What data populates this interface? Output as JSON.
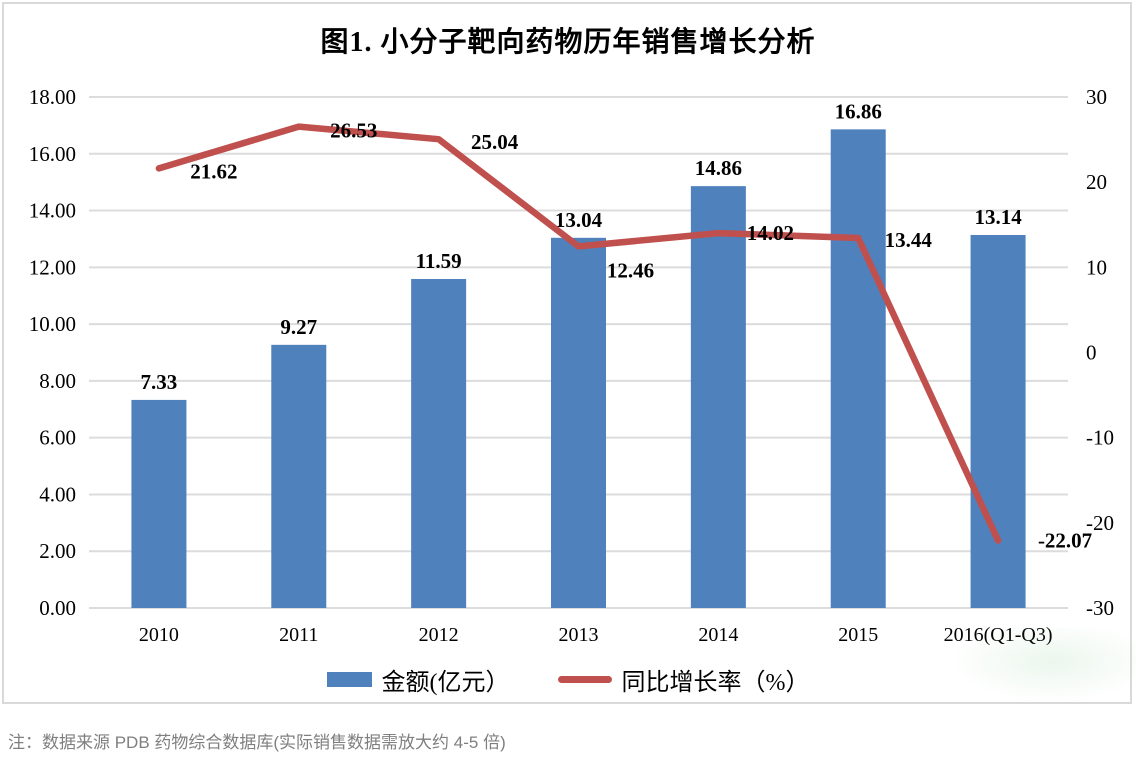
{
  "title": "图1. 小分子靶向药物历年销售增长分析",
  "note": "注：数据来源 PDB 药物综合数据库(实际销售数据需放大约 4-5 倍)",
  "colors": {
    "bar": "#4F81BD",
    "line": "#C0504D",
    "gridline": "#DCDCDC",
    "frame_border": "#D9D9D9",
    "axis_text": "#000000",
    "note_text": "#7F7F7F"
  },
  "legend": [
    {
      "label": "金额(亿元）",
      "type": "bar",
      "color": "#4F81BD"
    },
    {
      "label": "同比增长率（%）",
      "type": "line",
      "color": "#C0504D"
    }
  ],
  "chart_data": {
    "type": "bar",
    "subtype": "combo-bar-line-dual-axis",
    "title": "图1. 小分子靶向药物历年销售增长分析",
    "categories": [
      "2010",
      "2011",
      "2012",
      "2013",
      "2014",
      "2015",
      "2016(Q1-Q3)"
    ],
    "series": [
      {
        "name": "金额(亿元）",
        "type": "bar",
        "axis": "left",
        "color": "#4F81BD",
        "values": [
          7.33,
          9.27,
          11.59,
          13.04,
          14.86,
          16.86,
          13.14
        ],
        "data_labels": [
          "7.33",
          "9.27",
          "11.59",
          "13.04",
          "14.86",
          "16.86",
          "13.14"
        ]
      },
      {
        "name": "同比增长率（%）",
        "type": "line",
        "axis": "right",
        "color": "#C0504D",
        "values": [
          21.62,
          26.53,
          25.04,
          12.46,
          14.02,
          13.44,
          -22.07
        ],
        "data_labels": [
          "21.62",
          "26.53",
          "25.04",
          "12.46",
          "14.02",
          "13.44",
          "-22.07"
        ]
      }
    ],
    "left_axis": {
      "min": 0,
      "max": 18,
      "step": 2,
      "tick_labels": [
        "0.00",
        "2.00",
        "4.00",
        "6.00",
        "8.00",
        "10.00",
        "12.00",
        "14.00",
        "16.00",
        "18.00"
      ]
    },
    "right_axis": {
      "min": -30,
      "max": 30,
      "step": 10,
      "tick_labels": [
        "-30",
        "-20",
        "-10",
        "0",
        "10",
        "20",
        "30"
      ]
    },
    "grid": true,
    "legend_position": "bottom",
    "xlabel": "",
    "ylabel_left": "金额(亿元）",
    "ylabel_right": "同比增长率（%）"
  }
}
